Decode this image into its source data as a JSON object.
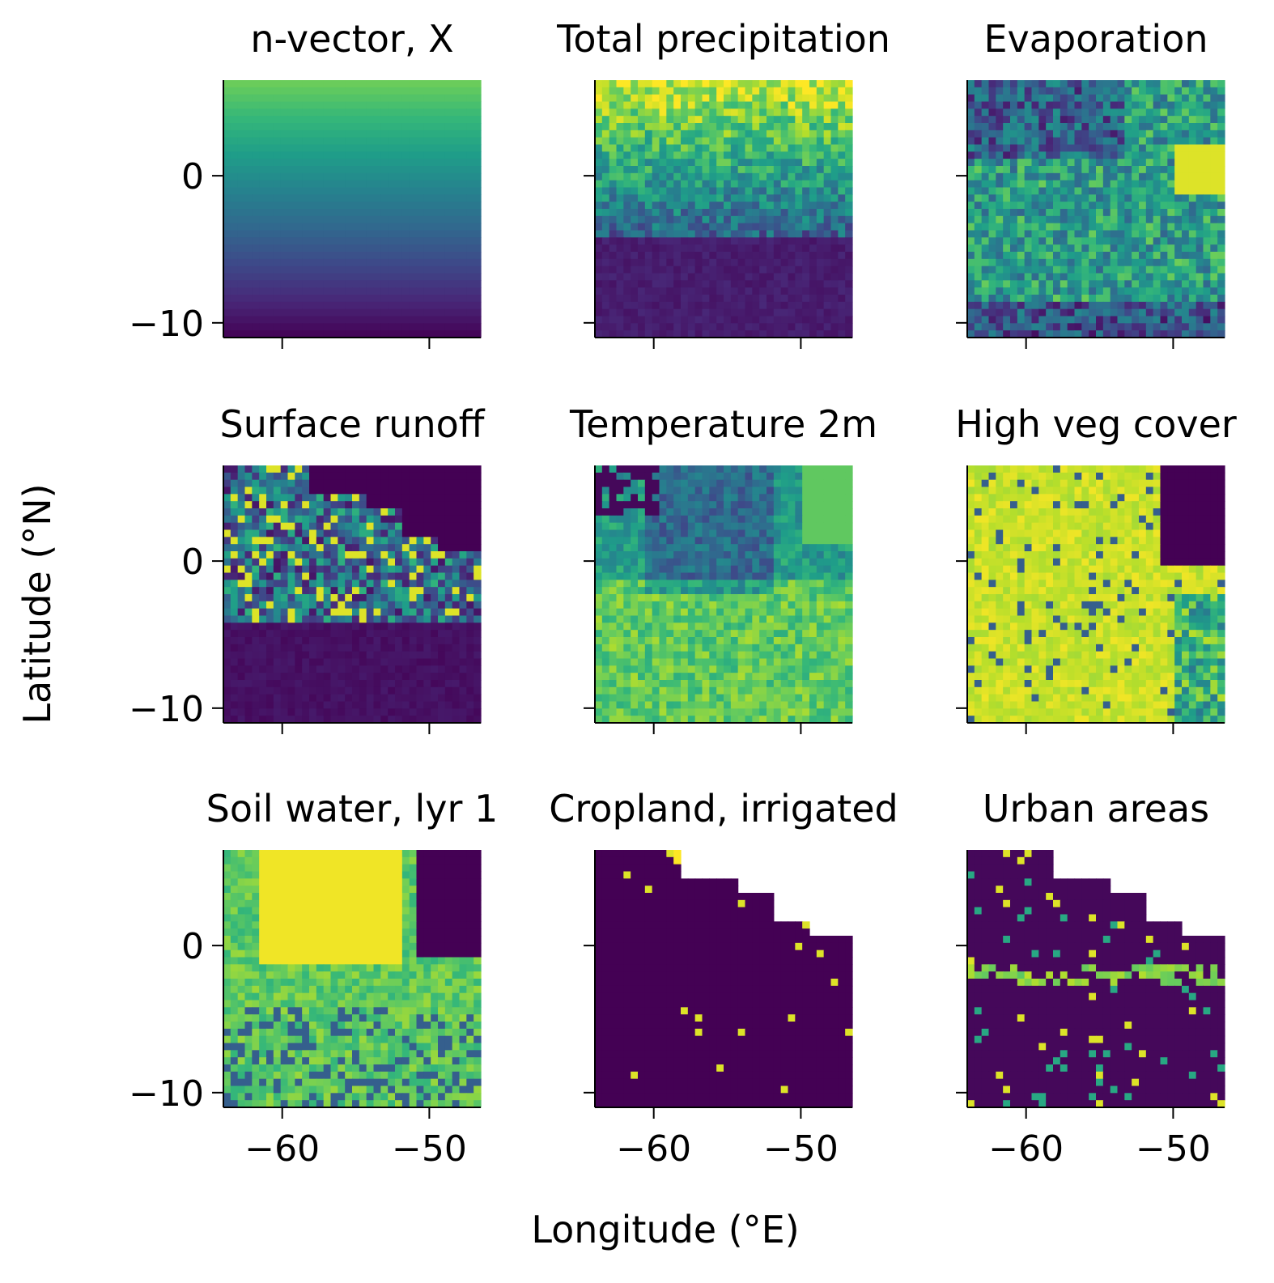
{
  "figure": {
    "xlabel": "Longitude (°E)",
    "ylabel": "Latitude (°N)"
  },
  "colormap": "viridis",
  "colors": {
    "viridis_stops": [
      "#440154",
      "#482878",
      "#3e4989",
      "#31688e",
      "#26828e",
      "#1f9e89",
      "#35b779",
      "#6ece58",
      "#b5de2b",
      "#fde725"
    ],
    "axis": "#000000",
    "background": "#ffffff"
  },
  "axes_common": {
    "xlim": [
      -64,
      -46.5
    ],
    "ylim": [
      -11,
      6.5
    ],
    "xticks": [
      -60,
      -50
    ],
    "xtick_labels": [
      "−60",
      "−50"
    ],
    "yticks": [
      0,
      -10
    ],
    "ytick_labels": [
      "0",
      "−10"
    ],
    "grid_cells": 36
  },
  "chart_data": [
    {
      "type": "heatmap",
      "title": "n-vector, X",
      "pattern": "gradient",
      "row": 0,
      "col": 0,
      "show_yticklabels": true,
      "show_xticklabels": false
    },
    {
      "type": "heatmap",
      "title": "Total precipitation",
      "pattern": "precip",
      "row": 0,
      "col": 1,
      "show_yticklabels": false,
      "show_xticklabels": false
    },
    {
      "type": "heatmap",
      "title": "Evaporation",
      "pattern": "evap",
      "row": 0,
      "col": 2,
      "show_yticklabels": false,
      "show_xticklabels": false
    },
    {
      "type": "heatmap",
      "title": "Surface runoff",
      "pattern": "runoff",
      "row": 1,
      "col": 0,
      "show_yticklabels": true,
      "show_xticklabels": false
    },
    {
      "type": "heatmap",
      "title": "Temperature 2m",
      "pattern": "temp",
      "row": 1,
      "col": 1,
      "show_yticklabels": false,
      "show_xticklabels": false
    },
    {
      "type": "heatmap",
      "title": "High veg cover",
      "pattern": "veg",
      "row": 1,
      "col": 2,
      "show_yticklabels": false,
      "show_xticklabels": false
    },
    {
      "type": "heatmap",
      "title": "Soil water, lyr 1",
      "pattern": "soil",
      "row": 2,
      "col": 0,
      "show_yticklabels": true,
      "show_xticklabels": true
    },
    {
      "type": "heatmap",
      "title": "Cropland, irrigated",
      "pattern": "crop",
      "row": 2,
      "col": 1,
      "show_yticklabels": false,
      "show_xticklabels": true
    },
    {
      "type": "heatmap",
      "title": "Urban areas",
      "pattern": "urban",
      "row": 2,
      "col": 2,
      "show_yticklabels": false,
      "show_xticklabels": true
    }
  ]
}
